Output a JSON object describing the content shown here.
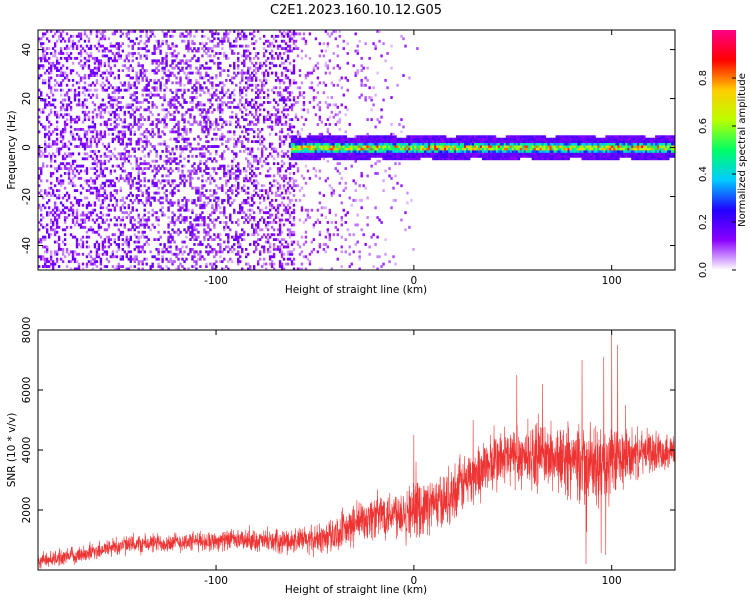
{
  "figure": {
    "title": "C2E1.2023.160.10.12.G05"
  },
  "chart_data": [
    {
      "type": "heatmap",
      "xlabel": "Height of straight line (km)",
      "ylabel": "Frequency (Hz)",
      "xlim": [
        -190,
        132
      ],
      "ylim": [
        -50,
        48
      ],
      "xticks": [
        -100,
        0,
        100
      ],
      "yticks": [
        -40,
        -20,
        0,
        20,
        40
      ],
      "colorbar": {
        "label": "Normalized spectral amplitude",
        "range": [
          0.0,
          1.0
        ],
        "ticks": [
          0.0,
          0.2,
          0.4,
          0.6,
          0.8
        ],
        "tick_labels": [
          "0.0",
          "0.2",
          "0.4",
          "0.6",
          "0.8"
        ],
        "colormap": [
          "#ffffff",
          "#8a00ff",
          "#2200ff",
          "#00ccff",
          "#00ff66",
          "#bbff00",
          "#ffcc00",
          "#ff0000",
          "#ff0088"
        ]
      },
      "features": {
        "noise_region_x": [
          -190,
          -60
        ],
        "scattered_noise_x": [
          -60,
          5
        ],
        "signal_band_x": [
          -62,
          132
        ],
        "signal_center_freq_hz": 0,
        "signal_halfwidth_hz": 3
      }
    },
    {
      "type": "line",
      "xlabel": "Height of straight line (km)",
      "ylabel": "SNR (10 * v/v)",
      "xlim": [
        -190,
        132
      ],
      "ylim": [
        0,
        8000
      ],
      "xticks": [
        -100,
        0,
        100
      ],
      "yticks": [
        2000,
        4000,
        6000,
        8000
      ],
      "line_color": "#ee3333",
      "series": [
        {
          "trend_x": [
            -190,
            -170,
            -150,
            -130,
            -110,
            -90,
            -70,
            -50,
            -35,
            -25,
            -15,
            0,
            15,
            25,
            35,
            45,
            55,
            65,
            75,
            85,
            95,
            105,
            115,
            132
          ],
          "trend_y": [
            300,
            500,
            800,
            900,
            950,
            1000,
            950,
            1000,
            1300,
            1700,
            1900,
            2000,
            2300,
            2900,
            3400,
            3700,
            3800,
            3800,
            3700,
            3500,
            3400,
            3700,
            3900,
            4000
          ],
          "spread_y": [
            300,
            350,
            400,
            400,
            400,
            400,
            450,
            600,
            800,
            900,
            1000,
            1100,
            1100,
            1200,
            1200,
            1300,
            1300,
            1300,
            1400,
            1500,
            1800,
            1300,
            900,
            700
          ],
          "spikes": [
            {
              "x": 0,
              "y": 4500
            },
            {
              "x": 30,
              "y": 5000
            },
            {
              "x": 52,
              "y": 6500
            },
            {
              "x": 65,
              "y": 6200
            },
            {
              "x": 85,
              "y": 7000
            },
            {
              "x": 96,
              "y": 7100
            },
            {
              "x": 100,
              "y": 8000
            },
            {
              "x": 103,
              "y": 7500
            },
            {
              "x": 107,
              "y": 5500
            },
            {
              "x": 87,
              "y": 200
            },
            {
              "x": 97,
              "y": 500
            }
          ]
        }
      ]
    }
  ]
}
